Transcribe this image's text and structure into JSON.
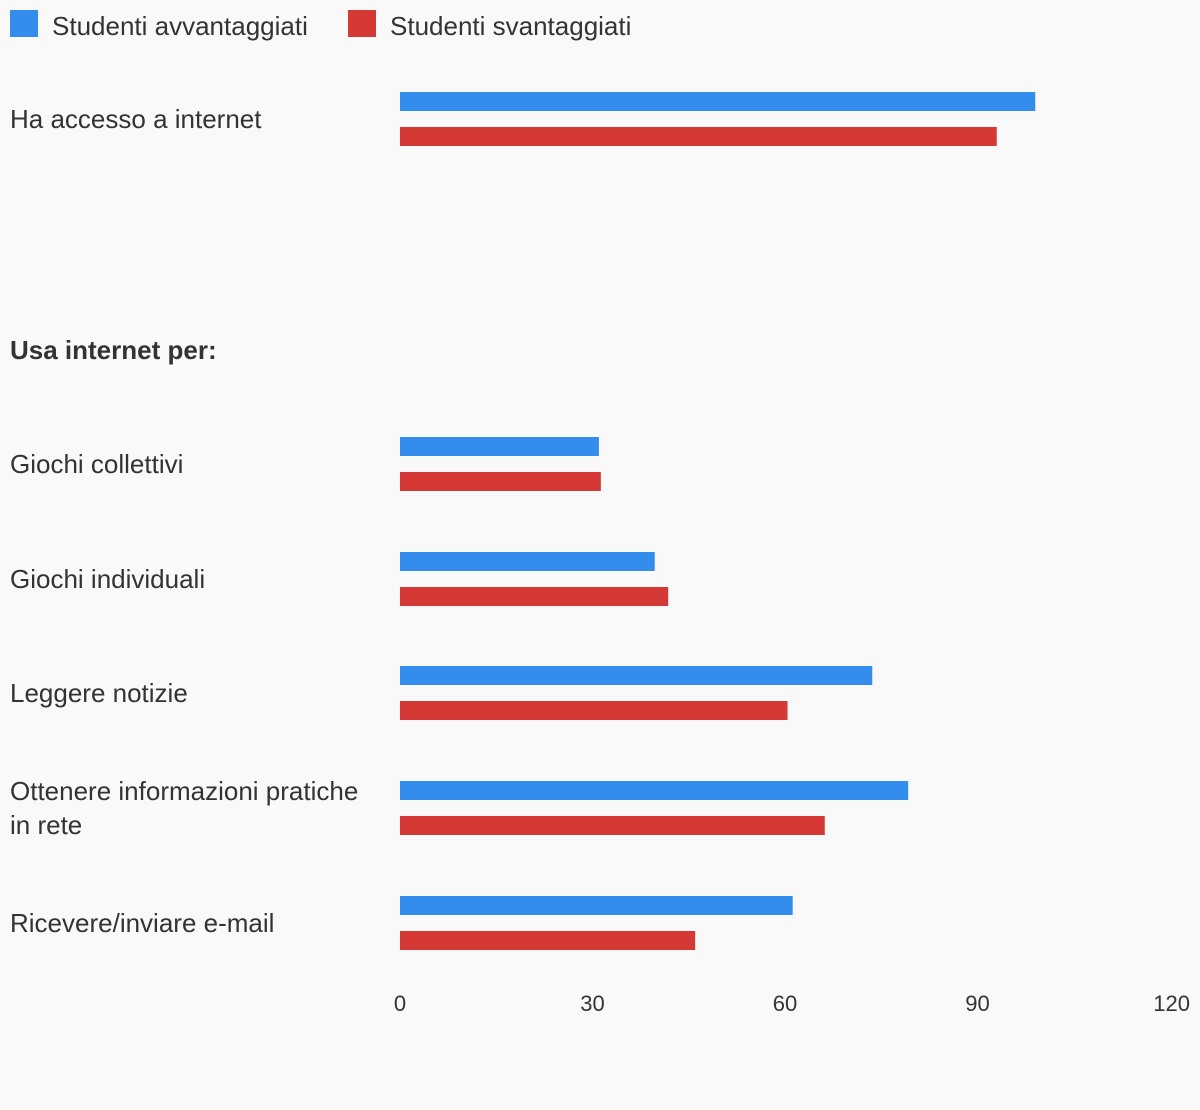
{
  "chart_data": {
    "type": "bar",
    "orientation": "horizontal",
    "title": "",
    "xlabel": "",
    "ylabel": "",
    "xlim": [
      0,
      120
    ],
    "x_ticks": [
      "0",
      "30",
      "60",
      "90",
      "120"
    ],
    "grid": false,
    "legend_position": "top-left",
    "series": [
      {
        "name": "Studenti avvantaggiati",
        "color": "#338ded"
      },
      {
        "name": "Studenti svantaggiati",
        "color": "#d43935"
      }
    ],
    "rows": [
      {
        "label": [
          "Ha accesso a internet"
        ],
        "header": false,
        "values": [
          99,
          93
        ]
      },
      {
        "label": [
          "Usa internet per:"
        ],
        "header": true,
        "values": []
      },
      {
        "label": [
          "Giochi collettivi"
        ],
        "header": false,
        "values": [
          31,
          31.3
        ]
      },
      {
        "label": [
          "Giochi individuali"
        ],
        "header": false,
        "values": [
          39.7,
          41.8
        ]
      },
      {
        "label": [
          "Leggere notizie"
        ],
        "header": false,
        "values": [
          73.6,
          60.4
        ]
      },
      {
        "label": [
          "Ottenere informazioni pratiche",
          "in rete"
        ],
        "header": false,
        "values": [
          79.2,
          66.2
        ]
      },
      {
        "label": [
          "Ricevere/inviare e-mail"
        ],
        "header": false,
        "values": [
          61.2,
          46
        ]
      }
    ]
  }
}
